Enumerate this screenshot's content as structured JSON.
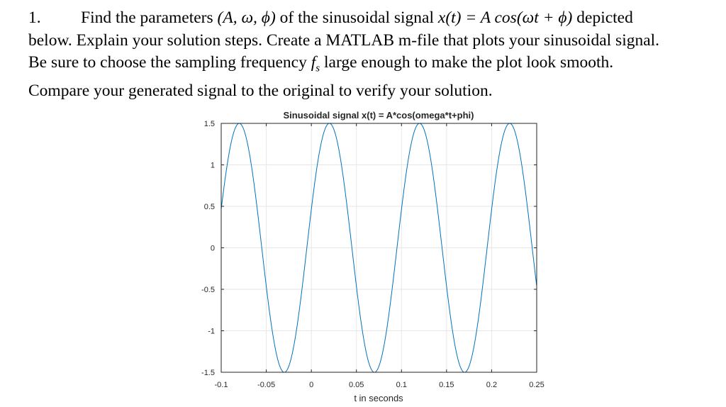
{
  "problem": {
    "number": "1.",
    "line1_pre": "Find the parameters",
    "params": "(A, ω, ϕ)",
    "line1_mid": "of the sinusoidal signal",
    "signal_lhs": "x(t)",
    "signal_eq": " = A cos",
    "signal_arg": "(ωt + ϕ)",
    "line1_post": "depicted",
    "line2": "below. Explain your solution steps. Create a MATLAB m-file that plots your sinusoidal signal.",
    "line3_pre": "Be sure to choose the sampling frequency",
    "fs_f": "f",
    "fs_sub": "s",
    "line3_post": "large enough to make the plot look smooth.",
    "line4": "Compare your generated signal to the original to verify your solution."
  },
  "chart_data": {
    "type": "line",
    "title": "Sinusoidal signal x(t) = A*cos(omega*t+phi)",
    "xlabel": "t in seconds",
    "ylabel": "",
    "xlim": [
      -0.1,
      0.25
    ],
    "ylim": [
      -1.5,
      1.5
    ],
    "xticks": [
      -0.1,
      -0.05,
      0,
      0.05,
      0.1,
      0.15,
      0.2,
      0.25
    ],
    "xtick_labels": [
      "-0.1",
      "-0.05",
      "0",
      "0.05",
      "0.1",
      "0.15",
      "0.2",
      "0.25"
    ],
    "yticks": [
      -1.5,
      -1,
      -0.5,
      0,
      0.5,
      1,
      1.5
    ],
    "ytick_labels": [
      "-1.5",
      "-1",
      "-0.5",
      "0",
      "0.5",
      "1",
      "1.5"
    ],
    "grid": true,
    "series": [
      {
        "amplitude": 1.5,
        "frequency_hz": 10,
        "phase_rad": -1.2566,
        "t_start": -0.1,
        "t_end": 0.25,
        "color": "#0072BD"
      }
    ]
  }
}
